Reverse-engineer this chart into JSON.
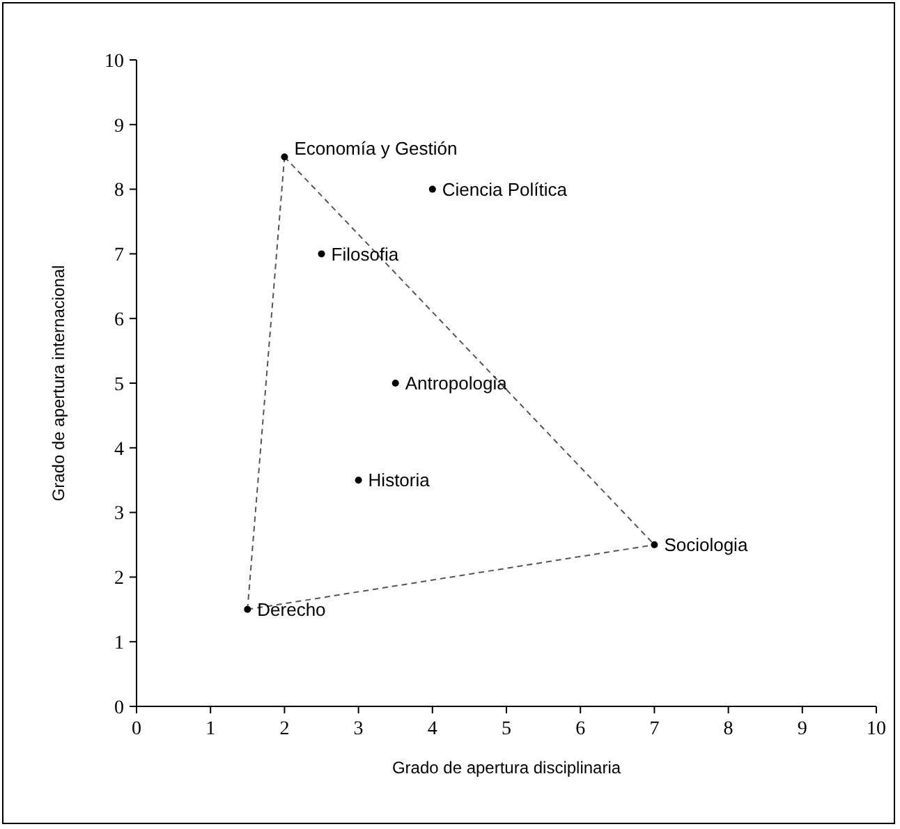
{
  "chart_data": {
    "type": "scatter",
    "xlabel": "Grado de apertura disciplinaria",
    "ylabel": "Grado de apertura internacional",
    "xlim": [
      0,
      10
    ],
    "xticks": [
      0,
      1,
      2,
      3,
      4,
      5,
      6,
      7,
      8,
      9,
      10
    ],
    "ylim": [
      0,
      10
    ],
    "yticks": [
      0,
      1,
      2,
      3,
      4,
      5,
      6,
      7,
      8,
      9,
      10
    ],
    "grid": false,
    "series": [
      {
        "type": "line",
        "color": "#555555",
        "line_style": "dashed",
        "marker": "none",
        "x": [
          2,
          7
        ],
        "values": [
          8.5,
          2.5
        ]
      },
      {
        "type": "line",
        "color": "#555555",
        "line_style": "dashed",
        "marker": "none",
        "x": [
          1.5,
          7
        ],
        "values": [
          1.5,
          2.5
        ]
      },
      {
        "type": "line",
        "color": "#555555",
        "line_style": "dashed",
        "marker": "none",
        "x": [
          1.5,
          2
        ],
        "values": [
          1.5,
          8.5
        ]
      },
      {
        "color": "#000000",
        "marker": "circle",
        "x": [
          2,
          4,
          2.5,
          3.5,
          3,
          7,
          1.5
        ],
        "values": [
          8.5,
          8,
          7,
          5,
          3.5,
          2.5,
          1.5
        ]
      }
    ],
    "annotations": [
      {
        "text": "Economía y Gestión",
        "x": 2,
        "y": 8.5
      },
      {
        "text": "Ciencia Política",
        "x": 4,
        "y": 8
      },
      {
        "text": "Filosofia",
        "x": 2.5,
        "y": 7
      },
      {
        "text": "Antropologia",
        "x": 3.5,
        "y": 5
      },
      {
        "text": "Historia",
        "x": 3,
        "y": 3.5
      },
      {
        "text": "Sociologia",
        "x": 7,
        "y": 2.5
      },
      {
        "text": "Derecho",
        "x": 1.5,
        "y": 1.5
      }
    ]
  }
}
